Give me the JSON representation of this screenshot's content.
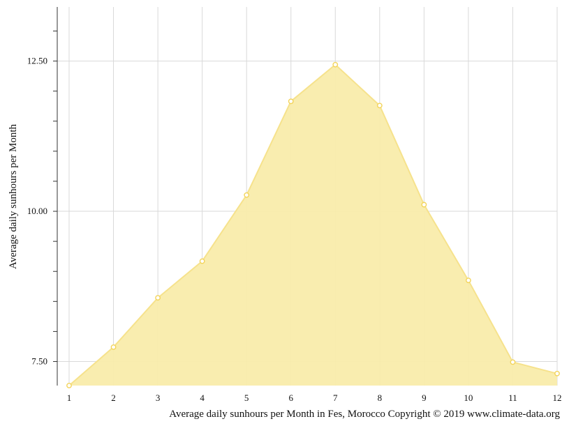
{
  "chart_data": {
    "type": "area",
    "title": "",
    "xlabel": "Average daily sunhours per Month in Fes, Morocco Copyright © 2019 www.climate-data.org",
    "ylabel": "Average daily sunhours per Month",
    "x": [
      1,
      2,
      3,
      4,
      5,
      6,
      7,
      8,
      9,
      10,
      11,
      12
    ],
    "x_tick_labels": [
      "1",
      "2",
      "3",
      "4",
      "5",
      "6",
      "7",
      "8",
      "9",
      "10",
      "11",
      "12"
    ],
    "y_tick_labels": [
      "12.50",
      "10.00",
      "7.50"
    ],
    "y_tick_values": [
      12.5,
      10.0,
      7.5
    ],
    "ylim": [
      7.1,
      13.4
    ],
    "xlim": [
      1,
      12
    ],
    "grid": true,
    "series": [
      {
        "values": [
          7.1,
          7.74,
          8.56,
          9.17,
          10.27,
          11.83,
          12.44,
          11.76,
          10.11,
          8.85,
          7.49,
          7.3
        ]
      }
    ],
    "colors": {
      "fill": "#f9ecab",
      "stroke": "#f6e28c",
      "point_fill": "#ffffff",
      "point_stroke": "#f3d45a",
      "grid": "#d9d9d9",
      "axis": "#333333"
    }
  }
}
